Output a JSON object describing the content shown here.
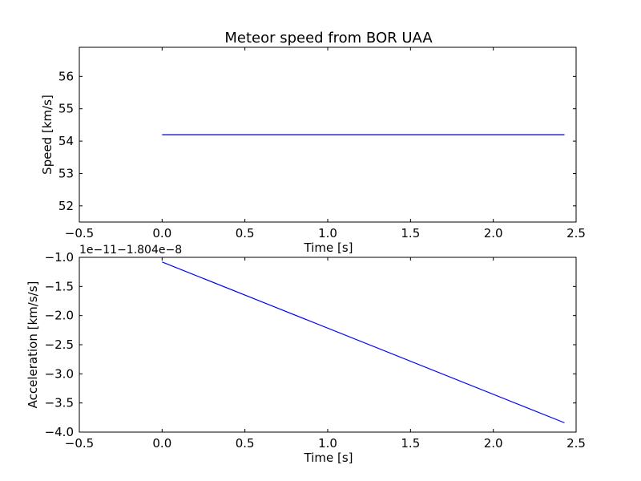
{
  "chart_data": [
    {
      "type": "line",
      "title": "Meteor speed from  BOR UAA",
      "xlabel": "Time [s]",
      "ylabel": "Speed [km/s]",
      "xlim": [
        -0.5,
        2.5
      ],
      "ylim": [
        51.5,
        56.9
      ],
      "xticks": [
        "−0.5",
        "0.0",
        "0.5",
        "1.0",
        "1.5",
        "2.0",
        "2.5"
      ],
      "xtick_values": [
        -0.5,
        0.0,
        0.5,
        1.0,
        1.5,
        2.0,
        2.5
      ],
      "yticks": [
        "52",
        "53",
        "54",
        "55",
        "56"
      ],
      "ytick_values": [
        52,
        53,
        54,
        55,
        56
      ],
      "grid": false,
      "series": [
        {
          "color": "#0000ff",
          "x": [
            0.0,
            2.43
          ],
          "y": [
            54.2,
            54.2
          ]
        }
      ]
    },
    {
      "type": "line",
      "title": "",
      "xlabel": "Time [s]",
      "ylabel": "Acceleration [km/s/s]",
      "offset_text": "1e−11−1.804e−8",
      "xlim": [
        -0.5,
        2.5
      ],
      "ylim": [
        -4.0,
        -1.0
      ],
      "xticks": [
        "−0.5",
        "0.0",
        "0.5",
        "1.0",
        "1.5",
        "2.0",
        "2.5"
      ],
      "xtick_values": [
        -0.5,
        0.0,
        0.5,
        1.0,
        1.5,
        2.0,
        2.5
      ],
      "yticks": [
        "−1.0",
        "−1.5",
        "−2.0",
        "−2.5",
        "−3.0",
        "−3.5",
        "−4.0"
      ],
      "ytick_values": [
        -1.0,
        -1.5,
        -2.0,
        -2.5,
        -3.0,
        -3.5,
        -4.0
      ],
      "grid": false,
      "series": [
        {
          "color": "#0000ff",
          "x": [
            0.0,
            2.43
          ],
          "y": [
            -1.08,
            -3.84
          ]
        }
      ]
    }
  ]
}
